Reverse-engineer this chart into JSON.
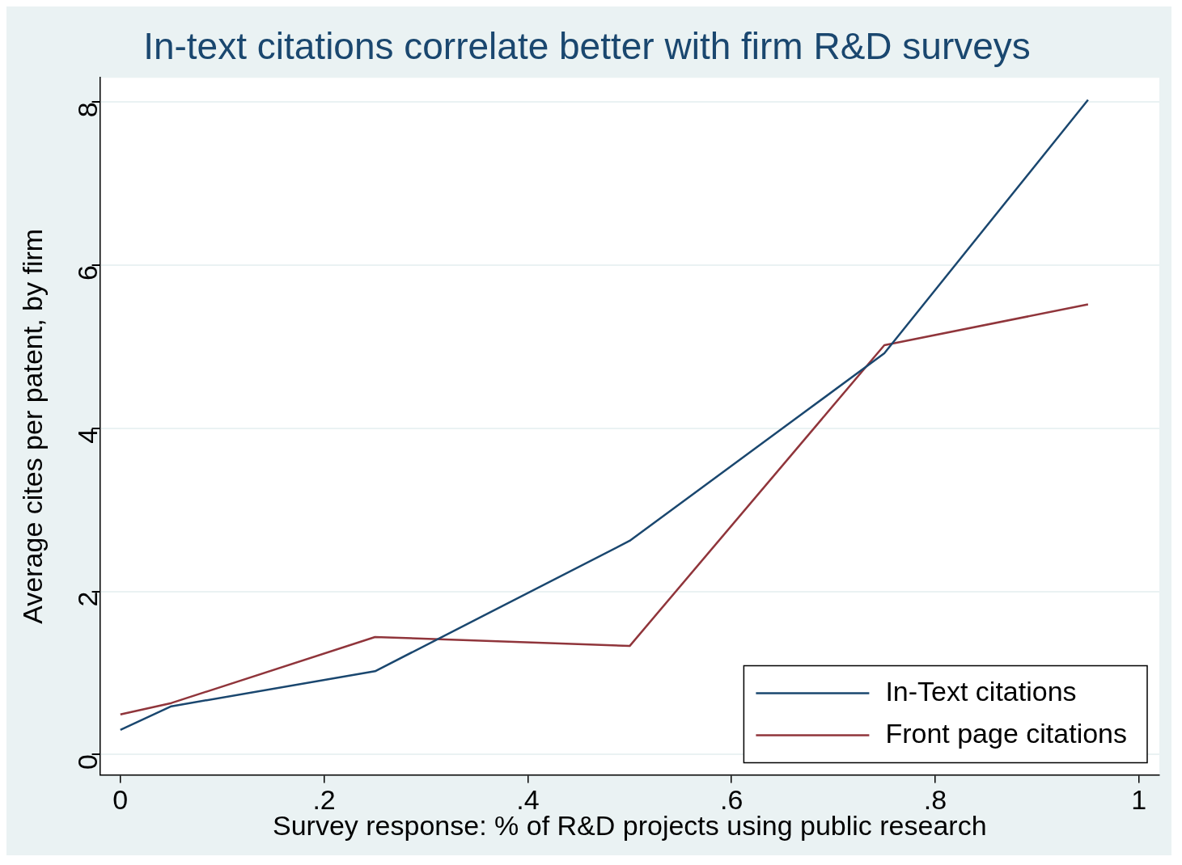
{
  "chart_data": {
    "type": "line",
    "title": "In-text citations correlate better with firm R&D surveys",
    "xlabel": "Survey response: % of R&D projects using public research",
    "ylabel": "Average cites per patent, by firm",
    "x": [
      0,
      0.05,
      0.25,
      0.5,
      0.75,
      0.95
    ],
    "series": [
      {
        "name": "In-Text citations",
        "color": "#1a476f",
        "values": [
          0.3,
          0.59,
          1.02,
          2.62,
          4.92,
          8.03
        ]
      },
      {
        "name": "Front page citations",
        "color": "#90353b",
        "values": [
          0.49,
          0.63,
          1.44,
          1.33,
          5.02,
          5.52
        ]
      }
    ],
    "xlim": [
      -0.02,
      1.02
    ],
    "xticks": [
      0,
      {
        "value": 0.2,
        "label": ".2"
      },
      {
        "value": 0.4,
        "label": ".4"
      },
      {
        "value": 0.6,
        "label": ".6"
      },
      {
        "value": 0.8,
        "label": ".8"
      },
      1
    ],
    "ylim": [
      -0.25,
      8.3
    ],
    "yticks": [
      0,
      2,
      4,
      6,
      8
    ],
    "grid": "y",
    "legend": "bottom right",
    "marker": "none",
    "line_style": "solid"
  }
}
